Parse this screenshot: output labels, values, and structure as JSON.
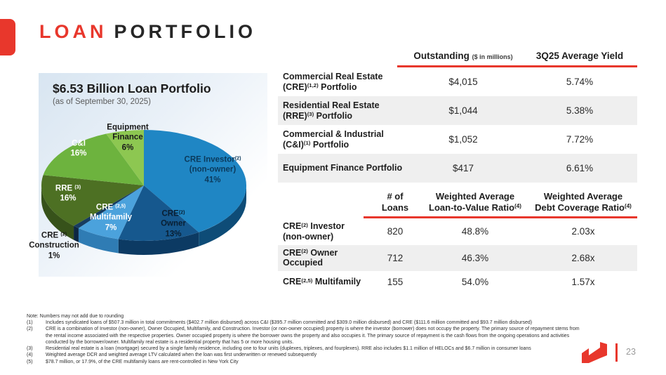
{
  "slide": {
    "title_red": "LOAN",
    "title_dark": "PORTFOLIO",
    "page_number": "23",
    "accent_red": "#e8372c"
  },
  "chart_data": {
    "type": "pie",
    "title": "$6.53 Billion Loan Portfolio",
    "subtitle": "(as of September 30, 2025)",
    "total_label": "$6.53 Billion",
    "as_of": "September 30, 2025",
    "slices": [
      {
        "name": "CRE Investor (non-owner)",
        "value": 41,
        "color": "#1f86c4",
        "side": "#0e4c77",
        "text": "#0b3a5c",
        "lines": [
          [
            {
              "t": "CRE Investor"
            },
            {
              "s": "(2)"
            }
          ],
          [
            {
              "t": "(non-owner)"
            }
          ],
          [
            {
              "t": "41%"
            }
          ]
        ]
      },
      {
        "name": "CRE Owner",
        "value": 13,
        "color": "#16588e",
        "side": "#0c3a63",
        "text": "#091f33",
        "lines": [
          [
            {
              "t": "CRE"
            },
            {
              "s": "(2)"
            }
          ],
          [
            {
              "t": "Owner"
            }
          ],
          [
            {
              "t": "13%"
            }
          ]
        ]
      },
      {
        "name": "CRE Multifamily",
        "value": 7,
        "color": "#4ba2dc",
        "side": "#2f7cb4",
        "text": "#ffffff",
        "lines": [
          [
            {
              "t": "CRE "
            },
            {
              "s": "(2,5)"
            }
          ],
          [
            {
              "t": "Multifamily"
            }
          ],
          [
            {
              "t": "7%"
            }
          ]
        ]
      },
      {
        "name": "CRE Construction",
        "value": 1,
        "color": "#173c60",
        "side": "#0d2742",
        "text": "#1c1c1c",
        "lines": [
          [
            {
              "t": "CRE "
            },
            {
              "s": "(2)"
            }
          ],
          [
            {
              "t": "Construction"
            }
          ],
          [
            {
              "t": "1%"
            }
          ]
        ]
      },
      {
        "name": "RRE",
        "value": 16,
        "color": "#4d7023",
        "side": "#37521a",
        "text": "#ffffff",
        "lines": [
          [
            {
              "t": "RRE "
            },
            {
              "s": "(3)"
            }
          ],
          [
            {
              "t": "16%"
            }
          ]
        ]
      },
      {
        "name": "C&I",
        "value": 16,
        "color": "#6db33e",
        "side": "#4d8029",
        "text": "#ffffff",
        "lines": [
          [
            {
              "t": "C&I"
            }
          ],
          [
            {
              "t": "16%"
            }
          ]
        ]
      },
      {
        "name": "Equipment Finance",
        "value": 6,
        "color": "#8dc751",
        "side": "#659433",
        "text": "#1a1a1a",
        "lines": [
          [
            {
              "t": "Equipment"
            }
          ],
          [
            {
              "t": "Finance"
            }
          ],
          [
            {
              "t": "6%"
            }
          ]
        ]
      }
    ]
  },
  "tables": {
    "outstanding": {
      "header_col2_main": "Outstanding",
      "header_col2_small": "($ in millions)",
      "header_col3": "3Q25 Average Yield",
      "rows": [
        {
          "label": [
            [
              {
                "t": "Commercial Real Estate"
              }
            ],
            [
              {
                "t": "(CRE)"
              },
              {
                "s": "(1,2)"
              },
              {
                "t": " Portfolio"
              }
            ]
          ],
          "outstanding": "$4,015",
          "yield": "5.74%"
        },
        {
          "label": [
            [
              {
                "t": "Residential Real Estate"
              }
            ],
            [
              {
                "t": "(RRE)"
              },
              {
                "s": "(3)"
              },
              {
                "t": " Portfolio"
              }
            ]
          ],
          "outstanding": "$1,044",
          "yield": "5.38%"
        },
        {
          "label": [
            [
              {
                "t": "Commercial & Industrial"
              }
            ],
            [
              {
                "t": "(C&I)"
              },
              {
                "s": "(1)"
              },
              {
                "t": " Portfolio"
              }
            ]
          ],
          "outstanding": "$1,052",
          "yield": "7.72%"
        },
        {
          "label": [
            [
              {
                "t": "Equipment Finance Portfolio"
              }
            ]
          ],
          "outstanding": "$417",
          "yield": "6.61%"
        }
      ]
    },
    "cre_detail": {
      "headers": [
        [
          [
            {
              "t": "# of"
            }
          ],
          [
            {
              "t": "Loans"
            }
          ]
        ],
        [
          [
            {
              "t": "Weighted Average"
            }
          ],
          [
            {
              "t": "Loan-to-Value Ratio"
            },
            {
              "s": "(4)"
            }
          ]
        ],
        [
          [
            {
              "t": "Weighted Average"
            }
          ],
          [
            {
              "t": "Debt Coverage Ratio"
            },
            {
              "s": "(4)"
            }
          ]
        ]
      ],
      "rows": [
        {
          "label": [
            [
              {
                "t": "CRE"
              },
              {
                "s": "(2)"
              },
              {
                "t": " Investor"
              }
            ],
            [
              {
                "t": "(non-owner)"
              }
            ]
          ],
          "loans": "820",
          "ltv": "48.8%",
          "dcr": "2.03x"
        },
        {
          "label": [
            [
              {
                "t": "CRE"
              },
              {
                "s": "(2)"
              },
              {
                "t": " Owner Occupied"
              }
            ]
          ],
          "loans": "712",
          "ltv": "46.3%",
          "dcr": "2.68x"
        },
        {
          "label": [
            [
              {
                "t": "CRE"
              },
              {
                "s": "(2,5)"
              },
              {
                "t": " Multifamily"
              }
            ]
          ],
          "loans": "155",
          "ltv": "54.0%",
          "dcr": "1.57x"
        }
      ]
    }
  },
  "footnotes": {
    "note": "Note: Numbers may not add due to rounding",
    "items": [
      {
        "n": "(1)",
        "t": "Includes syndicated loans of $507.3 million in total commitments ($402.7 million disbursed) across C&I ($395.7 million committed and $309.0 million disbursed) and CRE ($111.6 million committed and $93.7 million disbursed)"
      },
      {
        "n": "(2)",
        "t": "CRE is a combination of Investor (non-owner), Owner Occupied, Multifamily, and Construction. Investor (or non-owner occupied) property is where the investor (borrower) does not occupy the property. The primary source of repayment stems from the rental income associated with the respective properties. Owner occupied property is where the borrower owns the property and also occupies it. The primary source of repayment is the cash flows from the ongoing operations and activities conducted by the borrower/owner. Multifamily real estate is a residential property that has 5 or more housing units."
      },
      {
        "n": "(3)",
        "t": "Residential real estate is a loan (mortgage) secured by a single family residence, including one to four units (duplexes, triplexes, and fourplexes). RRE also includes $1.1 million of HELOCs and $6.7 million in consumer loans"
      },
      {
        "n": "(4)",
        "t": "Weighted average DCR and weighted average LTV calculated when the loan was first underwritten or renewed subsequently"
      },
      {
        "n": "(5)",
        "t": "$78.7 million, or 17.9%, of the CRE multifamily loans are rent-controlled in New York City"
      }
    ]
  }
}
